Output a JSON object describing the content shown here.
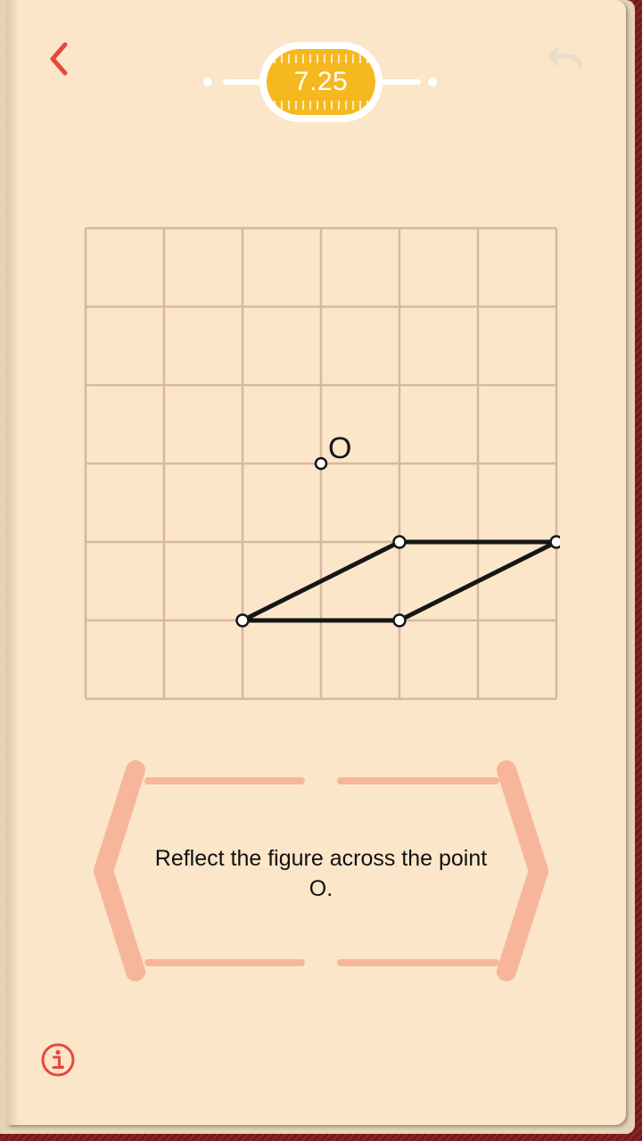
{
  "level": {
    "label": "7.25"
  },
  "board": {
    "grid": {
      "columns": 6,
      "rows": 6
    },
    "center_point": {
      "label": "O",
      "x": 3,
      "y": 3
    },
    "figure_vertices": [
      {
        "x": 2,
        "y": 5
      },
      {
        "x": 4,
        "y": 4
      },
      {
        "x": 6,
        "y": 4
      },
      {
        "x": 4,
        "y": 5
      }
    ]
  },
  "prompt": {
    "text": "Reflect the figure across the point O."
  },
  "icons": {
    "back": "chevron-left-icon",
    "undo": "undo-arrow-icon",
    "info": "info-circle-icon"
  },
  "colors": {
    "page": "#fbe6c9",
    "grid_line": "#d8b79e",
    "accent_red": "#e8473d",
    "badge_gold": "#f5b81f",
    "prompt_frame": "#f7b59c",
    "figure_stroke": "#161616",
    "book_cover": "#7a1e1e"
  }
}
